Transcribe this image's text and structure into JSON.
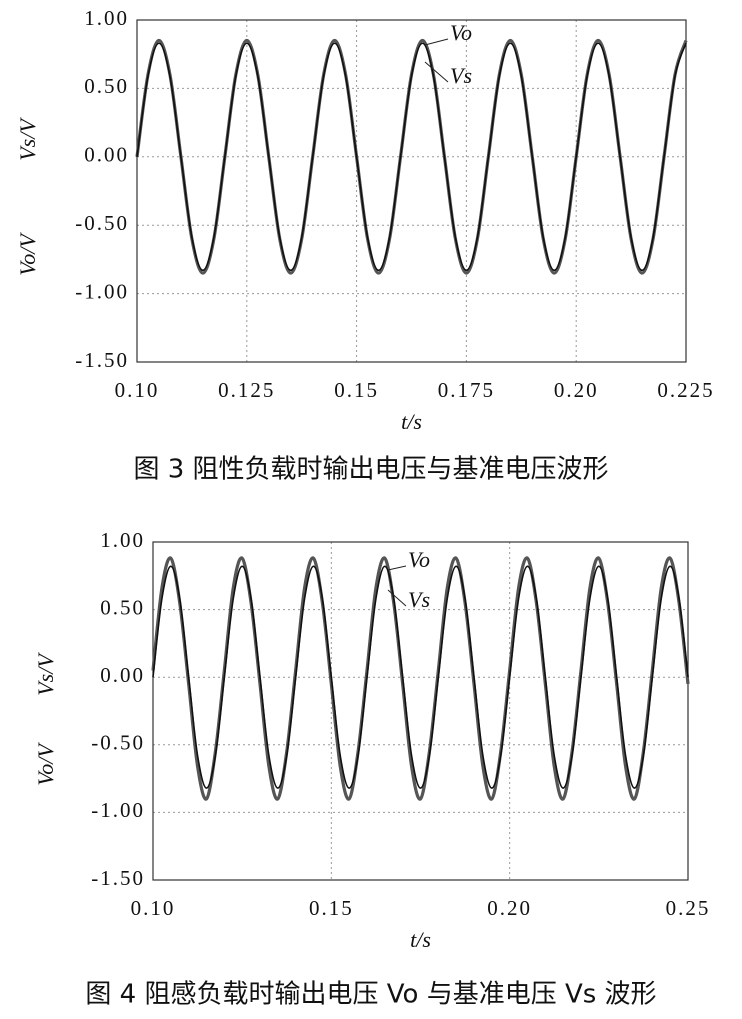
{
  "chart_data": [
    {
      "type": "line",
      "title": "图 3  阻性负载时输出电压与基准电压波形",
      "xlabel": "t/s",
      "ylabels": [
        "Vs/V",
        "Vo/V"
      ],
      "annotations": [
        "Vo",
        "Vs"
      ],
      "xlim": [
        0.1,
        0.225
      ],
      "ylim": [
        -1.5,
        1.0
      ],
      "grid": true,
      "xticks": [
        {
          "value": 0.1,
          "label": "0.10"
        },
        0.125,
        0.15,
        0.175,
        {
          "value": 0.2,
          "label": "0.20"
        },
        0.225
      ],
      "yticks": [
        {
          "value": 1.0,
          "label": "1.00"
        },
        {
          "value": 0.5,
          "label": "0.50"
        },
        {
          "value": 0.0,
          "label": "0.00"
        },
        {
          "value": -0.5,
          "label": "-0.50"
        },
        {
          "value": -1.0,
          "label": "-1.00"
        },
        {
          "value": -1.5,
          "label": "-1.50"
        }
      ],
      "x": [
        0.1,
        0.1025,
        0.105,
        0.1075,
        0.11,
        0.1125,
        0.115,
        0.1175,
        0.12,
        0.1225,
        0.125,
        0.1275,
        0.13,
        0.1325,
        0.135,
        0.1375,
        0.14,
        0.1425,
        0.145,
        0.1475,
        0.15,
        0.1525,
        0.155,
        0.1575,
        0.16,
        0.1625,
        0.165,
        0.1675,
        0.17,
        0.1725,
        0.175,
        0.1775,
        0.18,
        0.1825,
        0.185,
        0.1875,
        0.19,
        0.1925,
        0.195,
        0.1975,
        0.2,
        0.2025,
        0.205,
        0.2075,
        0.21,
        0.2125,
        0.215,
        0.2175,
        0.22,
        0.2225,
        0.225
      ],
      "series": [
        {
          "name": "Vo",
          "color": "#555555",
          "values": [
            0,
            0.6,
            0.85,
            0.6,
            0,
            -0.6,
            -0.85,
            -0.6,
            0,
            0.6,
            0.85,
            0.6,
            0,
            -0.6,
            -0.85,
            -0.6,
            0,
            0.6,
            0.85,
            0.6,
            0,
            -0.6,
            -0.85,
            -0.6,
            0,
            0.6,
            0.85,
            0.6,
            0,
            -0.6,
            -0.85,
            -0.6,
            0,
            0.6,
            0.85,
            0.6,
            0,
            -0.6,
            -0.85,
            -0.6,
            0,
            0.6,
            0.85,
            0.6,
            0,
            -0.6,
            -0.85,
            -0.6,
            0,
            0.6,
            0.85
          ]
        },
        {
          "name": "Vs",
          "color": "#111111",
          "values": [
            0,
            0.59,
            0.83,
            0.59,
            0,
            -0.59,
            -0.83,
            -0.59,
            0,
            0.59,
            0.83,
            0.59,
            0,
            -0.59,
            -0.83,
            -0.59,
            0,
            0.59,
            0.83,
            0.59,
            0,
            -0.59,
            -0.83,
            -0.59,
            0,
            0.59,
            0.83,
            0.59,
            0,
            -0.59,
            -0.83,
            -0.59,
            0,
            0.59,
            0.83,
            0.59,
            0,
            -0.59,
            -0.83,
            -0.59,
            0,
            0.59,
            0.83,
            0.59,
            0,
            -0.59,
            -0.83,
            -0.59,
            0,
            0.59,
            0.83
          ]
        }
      ]
    },
    {
      "type": "line",
      "title": "图 4  阻感负载时输出电压 Vo 与基准电压 Vs 波形",
      "xlabel": "t/s",
      "ylabels": [
        "Vs/V",
        "Vo/V"
      ],
      "annotations": [
        "Vo",
        "Vs"
      ],
      "xlim": [
        0.1,
        0.25
      ],
      "ylim": [
        -1.5,
        1.0
      ],
      "grid": true,
      "xticks": [
        {
          "value": 0.1,
          "label": "0.10"
        },
        0.15,
        {
          "value": 0.2,
          "label": "0.20"
        },
        0.25
      ],
      "yticks": [
        {
          "value": 1.0,
          "label": "1.00"
        },
        {
          "value": 0.5,
          "label": "0.50"
        },
        {
          "value": 0.0,
          "label": "0.00"
        },
        {
          "value": -0.5,
          "label": "-0.50"
        },
        {
          "value": -1.0,
          "label": "-1.00"
        },
        {
          "value": -1.5,
          "label": "-1.50"
        }
      ],
      "x": [
        0.1,
        0.1025,
        0.105,
        0.1075,
        0.11,
        0.1125,
        0.115,
        0.1175,
        0.12,
        0.1225,
        0.125,
        0.1275,
        0.13,
        0.1325,
        0.135,
        0.1375,
        0.14,
        0.1425,
        0.145,
        0.1475,
        0.15,
        0.1525,
        0.155,
        0.1575,
        0.16,
        0.1625,
        0.165,
        0.1675,
        0.17,
        0.1725,
        0.175,
        0.1775,
        0.18,
        0.1825,
        0.185,
        0.1875,
        0.19,
        0.1925,
        0.195,
        0.1975,
        0.2,
        0.2025,
        0.205,
        0.2075,
        0.21,
        0.2125,
        0.215,
        0.2175,
        0.22,
        0.2225,
        0.225,
        0.2275,
        0.23,
        0.2325,
        0.235,
        0.2375,
        0.24,
        0.2425,
        0.245,
        0.2475,
        0.25
      ],
      "series": [
        {
          "name": "Vo",
          "color": "#555555",
          "values": [
            0.05,
            0.66,
            0.88,
            0.55,
            -0.05,
            -0.66,
            -0.9,
            -0.55,
            0.05,
            0.66,
            0.88,
            0.55,
            -0.05,
            -0.66,
            -0.9,
            -0.55,
            0.05,
            0.66,
            0.88,
            0.55,
            -0.05,
            -0.66,
            -0.9,
            -0.55,
            0.05,
            0.66,
            0.88,
            0.55,
            -0.05,
            -0.66,
            -0.9,
            -0.55,
            0.05,
            0.66,
            0.88,
            0.55,
            -0.05,
            -0.66,
            -0.9,
            -0.55,
            0.05,
            0.66,
            0.88,
            0.55,
            -0.05,
            -0.66,
            -0.9,
            -0.55,
            0.05,
            0.66,
            0.88,
            0.55,
            -0.05,
            -0.66,
            -0.9,
            -0.55,
            0.05,
            0.66,
            0.88,
            0.55,
            -0.05
          ]
        },
        {
          "name": "Vs",
          "color": "#111111",
          "values": [
            0,
            0.58,
            0.82,
            0.58,
            0,
            -0.58,
            -0.82,
            -0.58,
            0,
            0.58,
            0.82,
            0.58,
            0,
            -0.58,
            -0.82,
            -0.58,
            0,
            0.58,
            0.82,
            0.58,
            0,
            -0.58,
            -0.82,
            -0.58,
            0,
            0.58,
            0.82,
            0.58,
            0,
            -0.58,
            -0.82,
            -0.58,
            0,
            0.58,
            0.82,
            0.58,
            0,
            -0.58,
            -0.82,
            -0.58,
            0,
            0.58,
            0.82,
            0.58,
            0,
            -0.58,
            -0.82,
            -0.58,
            0,
            0.58,
            0.82,
            0.58,
            0,
            -0.58,
            -0.82,
            -0.58,
            0,
            0.58,
            0.82,
            0.58,
            0
          ]
        }
      ]
    }
  ]
}
